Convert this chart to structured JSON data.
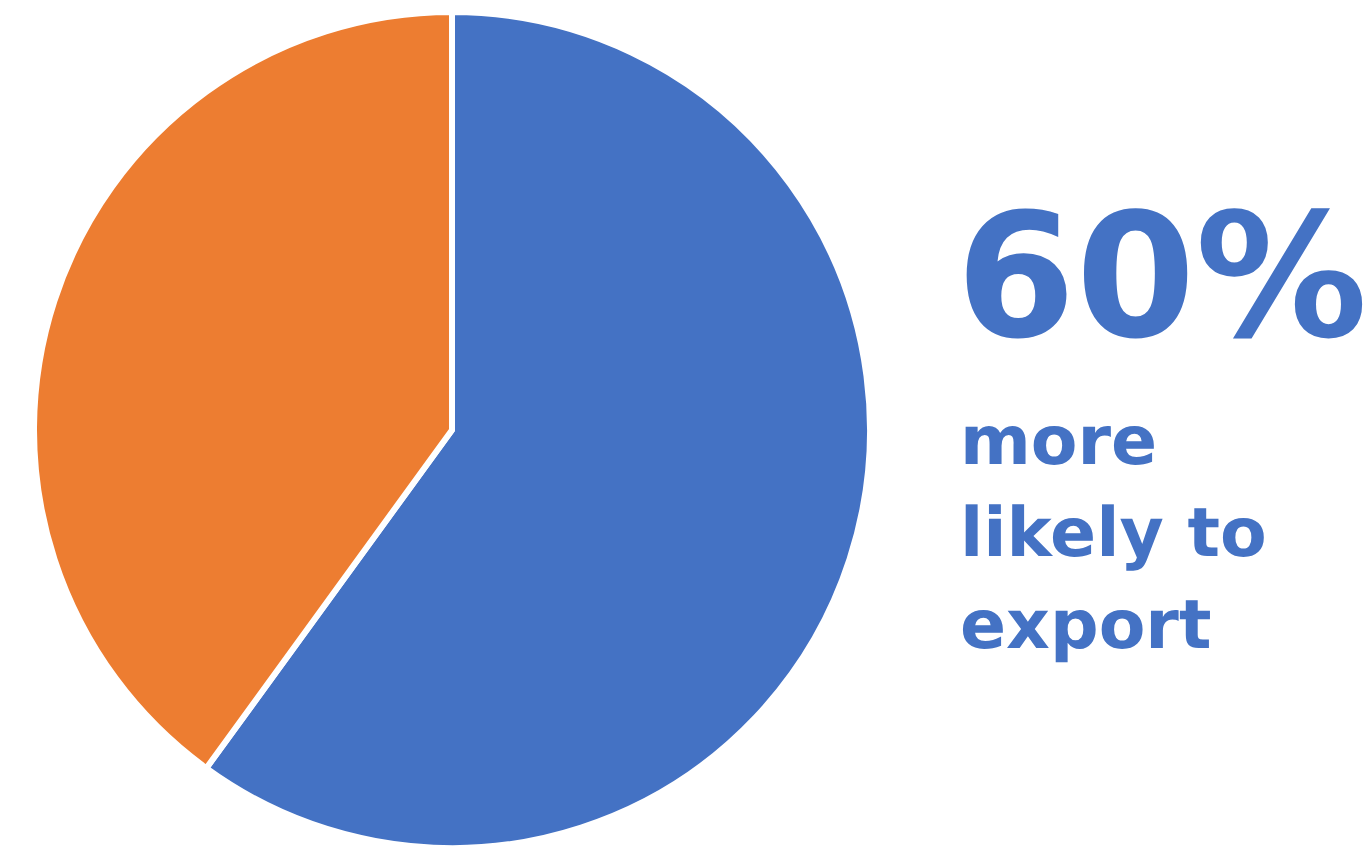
{
  "chart_data": {
    "type": "pie",
    "categories": [
      null,
      null
    ],
    "values": [
      60,
      40
    ],
    "colors": [
      "#4472c4",
      "#ed7d31"
    ],
    "annotations": [
      "60%",
      "more likely to export"
    ]
  }
}
